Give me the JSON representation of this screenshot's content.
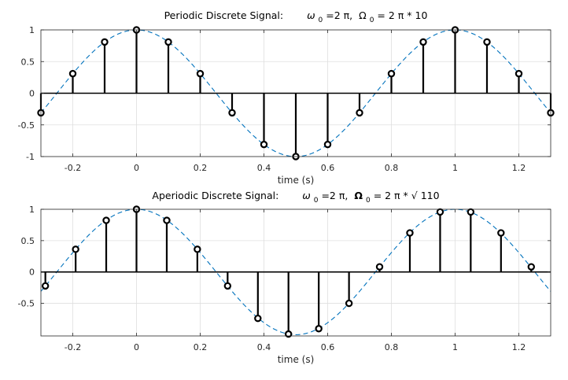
{
  "colors": {
    "stem": "#000000",
    "envelope": "#0072BD",
    "grid": "#dfdfdf",
    "axis": "#262626",
    "background": "#ffffff"
  },
  "chart_data": [
    {
      "type": "stem",
      "title_text": "Periodic Discrete Signal:",
      "title_omega_part": "ω",
      "title_omega_sub": "0",
      "title_omega_rest": "=2 π,",
      "title_Omega_part": "Ω",
      "title_Omega_sub": "0",
      "title_Omega_rest": " = 2 π * 10",
      "xlabel": "time (s)",
      "xlim": [
        -0.3,
        1.3
      ],
      "ylim": [
        -1,
        1
      ],
      "xticks": [
        -0.2,
        0,
        0.2,
        0.4,
        0.6,
        0.8,
        1,
        1.2
      ],
      "xtick_labels": [
        "-0.2",
        "0",
        "0.2",
        "0.4",
        "0.6",
        "0.8",
        "1",
        "1.2"
      ],
      "yticks": [
        -1,
        -0.5,
        0,
        0.5,
        1
      ],
      "ytick_labels": [
        "-1",
        "-0.5",
        "0",
        "0.5",
        "1"
      ],
      "envelope": "cos(2*pi*t)",
      "samples": {
        "t": [
          -0.3,
          -0.2,
          -0.1,
          0,
          0.1,
          0.2,
          0.3,
          0.4,
          0.5,
          0.6,
          0.7,
          0.8,
          0.9,
          1.0,
          1.1,
          1.2,
          1.3
        ],
        "y": [
          -0.309,
          0.309,
          0.809,
          1,
          0.809,
          0.309,
          -0.309,
          -0.809,
          -1,
          -0.809,
          -0.309,
          0.309,
          0.809,
          1,
          0.809,
          0.309,
          -0.309
        ]
      }
    },
    {
      "type": "stem",
      "title_text": "Aperiodic Discrete Signal:",
      "title_omega_part": "ω",
      "title_omega_sub": "0",
      "title_omega_rest": "=2 π,",
      "title_Omega_part": "Ω",
      "title_Omega_sub": "0",
      "title_Omega_rest": " = 2 π * √ 110",
      "xlabel": "time (s)",
      "xlim": [
        -0.3,
        1.3
      ],
      "ylim": [
        -1,
        1
      ],
      "xticks": [
        -0.2,
        0,
        0.2,
        0.4,
        0.6,
        0.8,
        1,
        1.2
      ],
      "xtick_labels": [
        "-0.2",
        "0",
        "0.2",
        "0.4",
        "0.6",
        "0.8",
        "1",
        "1.2"
      ],
      "yticks": [
        -0.5,
        0,
        0.5,
        1
      ],
      "ytick_labels": [
        "-0.5",
        "0",
        "0.5",
        "1"
      ],
      "envelope": "cos(2*pi*t)",
      "samples": {
        "t": [
          -0.286,
          -0.191,
          -0.095,
          0,
          0.095,
          0.191,
          0.286,
          0.381,
          0.477,
          0.572,
          0.667,
          0.763,
          0.858,
          0.953,
          1.049,
          1.144,
          1.239
        ],
        "y": [
          -0.222,
          0.362,
          0.823,
          1,
          0.823,
          0.362,
          -0.222,
          -0.74,
          -0.99,
          -0.904,
          -0.5,
          0.082,
          0.623,
          0.957,
          0.957,
          0.623,
          0.082
        ]
      }
    }
  ]
}
